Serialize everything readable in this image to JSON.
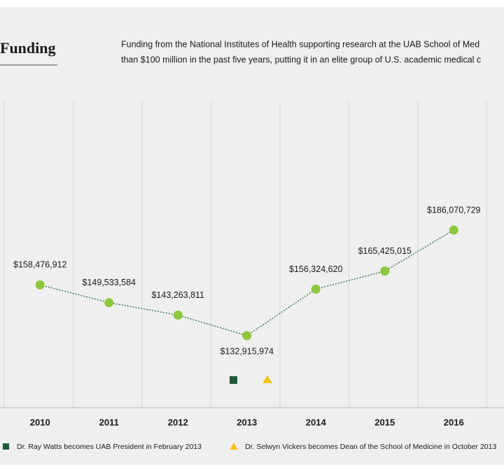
{
  "chart_data": {
    "type": "line",
    "title": "Funding",
    "subtitle": [
      "Funding from the National Institutes of Health supporting research at the UAB School of Med",
      "than $100 million in the past five years, putting it in an elite group of U.S. academic medical c"
    ],
    "categories": [
      "2010",
      "2011",
      "2012",
      "2013",
      "2014",
      "2015",
      "2016"
    ],
    "values": [
      158476912,
      149533584,
      143263811,
      132915974,
      156324620,
      165425015,
      186070729
    ],
    "value_labels": [
      "$158,476,912",
      "$149,533,584",
      "$143,263,811",
      "$132,915,974",
      "$156,324,620",
      "$165,425,015",
      "$186,070,729"
    ],
    "color": "#8dc63f",
    "line_color": "#2e6b3a",
    "grid": true,
    "annotations": [
      {
        "label": "Dr. Ray Watts becomes UAB President in February 2013",
        "color": "#1c5a3a"
      },
      {
        "label": "Dr. Selwyn Vickers becomes Dean of the School of Medicine in October 2013",
        "color": "#f3c31c"
      }
    ]
  }
}
